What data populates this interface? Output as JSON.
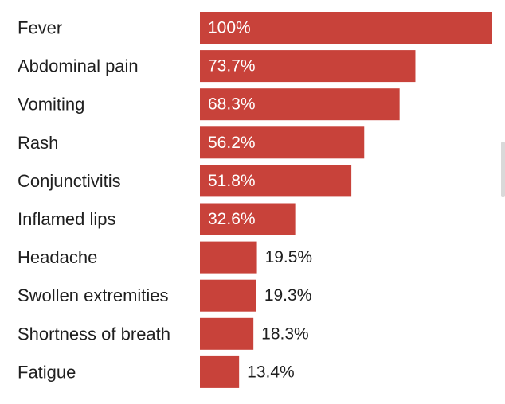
{
  "chart_data": {
    "type": "bar",
    "orientation": "horizontal",
    "categories": [
      "Fever",
      "Abdominal pain",
      "Vomiting",
      "Rash",
      "Conjunctivitis",
      "Inflamed lips",
      "Headache",
      "Swollen extremities",
      "Shortness of breath",
      "Fatigue"
    ],
    "values": [
      100,
      73.7,
      68.3,
      56.2,
      51.8,
      32.6,
      19.5,
      19.3,
      18.3,
      13.4
    ],
    "value_labels": [
      "100%",
      "73.7%",
      "68.3%",
      "56.2%",
      "51.8%",
      "32.6%",
      "19.5%",
      "19.3%",
      "18.3%",
      "13.4%"
    ],
    "xlim": [
      0,
      100
    ],
    "grid": false,
    "legend": "none"
  },
  "colors": {
    "bar": "#c8423a",
    "label_inside": "#ffffff",
    "label_outside": "#1f1f1f"
  }
}
